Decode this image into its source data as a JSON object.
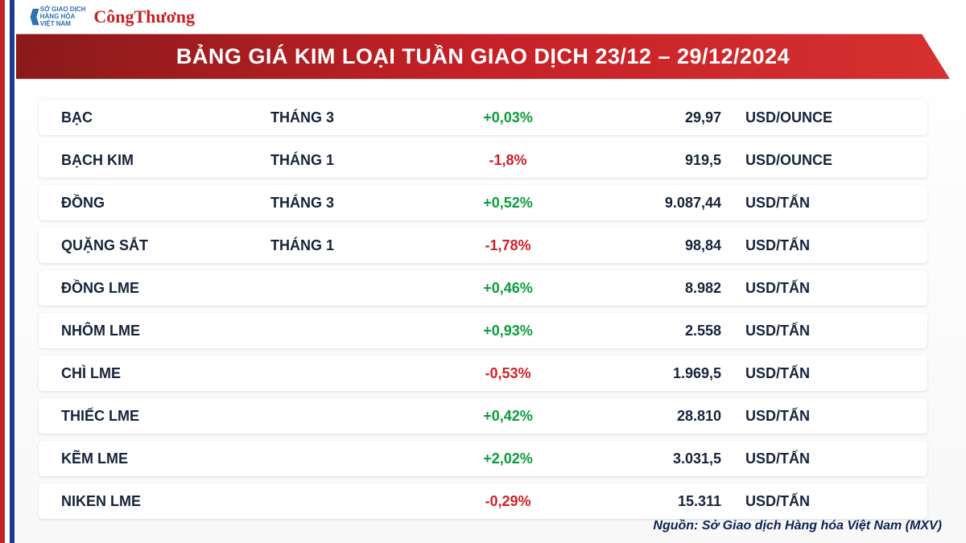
{
  "header": {
    "mxv_lines": [
      "SỞ GIAO DỊCH",
      "HÀNG HÓA",
      "VIỆT NAM"
    ],
    "congthuong": "CôngThương"
  },
  "title": "BẢNG GIÁ KIM LOẠI TUẦN GIAO DỊCH 23/12 – 29/12/2024",
  "colors": {
    "up": "#0a9d3c",
    "down": "#d22027",
    "title_bg_start": "#8b1a1a",
    "title_bg_end": "#d63030",
    "row_bg": "#ffffff",
    "text": "#15233b"
  },
  "rows": [
    {
      "name": "BẠC",
      "month": "THÁNG 3",
      "change": "+0,03%",
      "dir": "up",
      "price": "29,97",
      "unit": "USD/OUNCE"
    },
    {
      "name": "BẠCH KIM",
      "month": "THÁNG 1",
      "change": "-1,8%",
      "dir": "down",
      "price": "919,5",
      "unit": "USD/OUNCE"
    },
    {
      "name": "ĐỒNG",
      "month": "THÁNG 3",
      "change": "+0,52%",
      "dir": "up",
      "price": "9.087,44",
      "unit": "USD/TẤN"
    },
    {
      "name": "QUẶNG SẮT",
      "month": "THÁNG 1",
      "change": "-1,78%",
      "dir": "down",
      "price": "98,84",
      "unit": "USD/TẤN"
    },
    {
      "name": "ĐỒNG LME",
      "month": "",
      "change": "+0,46%",
      "dir": "up",
      "price": "8.982",
      "unit": "USD/TẤN"
    },
    {
      "name": "NHÔM LME",
      "month": "",
      "change": "+0,93%",
      "dir": "up",
      "price": "2.558",
      "unit": "USD/TẤN"
    },
    {
      "name": "CHÌ LME",
      "month": "",
      "change": "-0,53%",
      "dir": "down",
      "price": "1.969,5",
      "unit": "USD/TẤN"
    },
    {
      "name": "THIẾC LME",
      "month": "",
      "change": "+0,42%",
      "dir": "up",
      "price": "28.810",
      "unit": "USD/TẤN"
    },
    {
      "name": "KẼM LME",
      "month": "",
      "change": "+2,02%",
      "dir": "up",
      "price": "3.031,5",
      "unit": "USD/TẤN"
    },
    {
      "name": "NIKEN LME",
      "month": "",
      "change": "-0,29%",
      "dir": "down",
      "price": "15.311",
      "unit": "USD/TẤN"
    }
  ],
  "source": "Nguồn: Sở Giao dịch Hàng hóa Việt Nam (MXV)"
}
